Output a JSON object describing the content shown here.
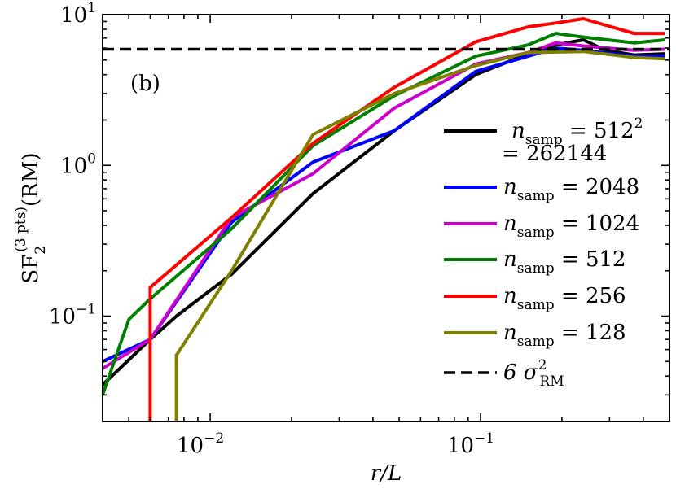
{
  "chart_data": {
    "type": "line",
    "panel_label": "(b)",
    "xlabel": "r/L",
    "ylabel": {
      "base": "SF",
      "sub": "2",
      "sup": "(3 pts)",
      "suffix": "(RM)"
    },
    "xscale": "log",
    "yscale": "log",
    "xlim": [
      0.004,
      0.5
    ],
    "ylim": [
      0.02,
      10
    ],
    "x_ticks": [
      {
        "value": 0.01,
        "base": "10",
        "exp": "−2"
      },
      {
        "value": 0.1,
        "base": "10",
        "exp": "−1"
      }
    ],
    "y_ticks": [
      {
        "value": 0.1,
        "base": "10",
        "exp": "−1"
      },
      {
        "value": 1,
        "base": "10",
        "exp": "0"
      },
      {
        "value": 10,
        "base": "10",
        "exp": "1"
      }
    ],
    "grid": false,
    "legend_position": "right",
    "series": [
      {
        "name": "n_samp = 512² = 262144",
        "legend": {
          "var": "n",
          "sub": "samp",
          "eq": " = 512",
          "sup": "2",
          "line2": "= 262144"
        },
        "color": "#000000",
        "dash": "solid",
        "points": [
          [
            0.004,
            0.035
          ],
          [
            0.006,
            0.07
          ],
          [
            0.0075,
            0.1
          ],
          [
            0.012,
            0.19
          ],
          [
            0.024,
            0.65
          ],
          [
            0.048,
            1.7
          ],
          [
            0.096,
            4.0
          ],
          [
            0.15,
            5.5
          ],
          [
            0.19,
            6.3
          ],
          [
            0.24,
            6.8
          ],
          [
            0.29,
            5.8
          ],
          [
            0.37,
            5.4
          ],
          [
            0.48,
            5.5
          ]
        ]
      },
      {
        "name": "n_samp = 2048",
        "legend": {
          "var": "n",
          "sub": "samp",
          "eq": " = 2048"
        },
        "color": "#0000ff",
        "dash": "solid",
        "points": [
          [
            0.004,
            0.05
          ],
          [
            0.006,
            0.07
          ],
          [
            0.012,
            0.42
          ],
          [
            0.024,
            1.05
          ],
          [
            0.048,
            1.7
          ],
          [
            0.096,
            4.2
          ],
          [
            0.15,
            5.3
          ],
          [
            0.19,
            6.0
          ],
          [
            0.24,
            5.8
          ],
          [
            0.37,
            5.3
          ],
          [
            0.48,
            5.3
          ]
        ]
      },
      {
        "name": "n_samp = 1024",
        "legend": {
          "var": "n",
          "sub": "samp",
          "eq": " = 1024"
        },
        "color": "#cc00cc",
        "dash": "solid",
        "points": [
          [
            0.004,
            0.045
          ],
          [
            0.006,
            0.07
          ],
          [
            0.012,
            0.45
          ],
          [
            0.024,
            0.88
          ],
          [
            0.048,
            2.4
          ],
          [
            0.096,
            4.7
          ],
          [
            0.15,
            5.6
          ],
          [
            0.19,
            6.5
          ],
          [
            0.24,
            6.2
          ],
          [
            0.37,
            5.8
          ],
          [
            0.48,
            5.9
          ]
        ]
      },
      {
        "name": "n_samp = 512",
        "legend": {
          "var": "n",
          "sub": "samp",
          "eq": " = 512"
        },
        "color": "#008000",
        "dash": "solid",
        "points": [
          [
            0.004,
            0.03
          ],
          [
            0.005,
            0.095
          ],
          [
            0.006,
            0.13
          ],
          [
            0.012,
            0.38
          ],
          [
            0.024,
            1.35
          ],
          [
            0.048,
            2.9
          ],
          [
            0.096,
            5.3
          ],
          [
            0.15,
            6.3
          ],
          [
            0.19,
            7.5
          ],
          [
            0.24,
            7.1
          ],
          [
            0.37,
            6.5
          ],
          [
            0.48,
            6.8
          ]
        ]
      },
      {
        "name": "n_samp = 256",
        "legend": {
          "var": "n",
          "sub": "samp",
          "eq": " = 256"
        },
        "color": "#ff0000",
        "dash": "solid",
        "points": [
          [
            0.006,
            0.015
          ],
          [
            0.006,
            0.155
          ],
          [
            0.012,
            0.45
          ],
          [
            0.024,
            1.4
          ],
          [
            0.048,
            3.3
          ],
          [
            0.096,
            6.6
          ],
          [
            0.15,
            8.3
          ],
          [
            0.19,
            8.8
          ],
          [
            0.24,
            9.4
          ],
          [
            0.37,
            7.5
          ],
          [
            0.48,
            7.5
          ]
        ]
      },
      {
        "name": "n_samp = 128",
        "legend": {
          "var": "n",
          "sub": "samp",
          "eq": " = 128"
        },
        "color": "#808000",
        "dash": "solid",
        "points": [
          [
            0.0075,
            0.015
          ],
          [
            0.0075,
            0.055
          ],
          [
            0.012,
            0.2
          ],
          [
            0.024,
            1.6
          ],
          [
            0.048,
            3.0
          ],
          [
            0.096,
            4.6
          ],
          [
            0.15,
            5.6
          ],
          [
            0.24,
            5.7
          ],
          [
            0.37,
            5.2
          ],
          [
            0.48,
            5.1
          ]
        ]
      },
      {
        "name": "6 σ_RM²",
        "legend": {
          "var": "6 σ",
          "sub": "RM",
          "sup": "2",
          "eq": ""
        },
        "color": "#000000",
        "dash": "dashed",
        "points": [
          [
            0.004,
            5.9
          ],
          [
            0.5,
            5.9
          ]
        ]
      }
    ]
  }
}
